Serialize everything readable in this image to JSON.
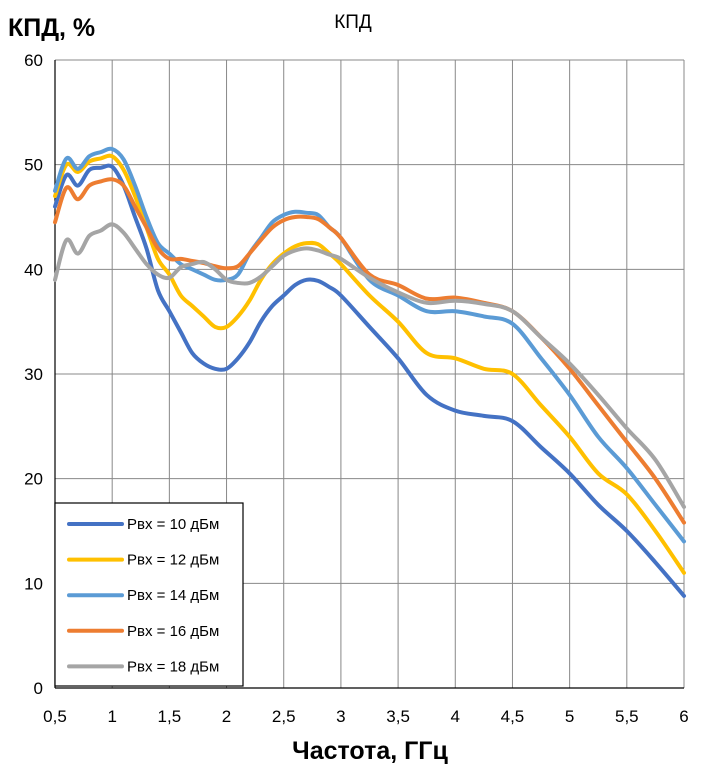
{
  "chart_data": {
    "type": "line",
    "title": "КПД",
    "ylabel": "КПД, %",
    "xlabel": "Частота, ГГц",
    "xlim": [
      0.5,
      6
    ],
    "ylim": [
      0,
      60
    ],
    "x_ticks": [
      0.5,
      1,
      1.5,
      2,
      2.5,
      3,
      3.5,
      4,
      4.5,
      5,
      5.5,
      6
    ],
    "x_tick_labels": [
      "0,5",
      "1",
      "1,5",
      "2",
      "2,5",
      "3",
      "3,5",
      "4",
      "4,5",
      "5",
      "5,5",
      "6"
    ],
    "y_ticks": [
      0,
      10,
      20,
      30,
      40,
      50,
      60
    ],
    "y_tick_labels": [
      "0",
      "10",
      "20",
      "30",
      "40",
      "50",
      "60"
    ],
    "grid": true,
    "legend_position": "bottom-left",
    "series": [
      {
        "name": "Pвх = 10 дБм",
        "color": "#4472C4",
        "x": [
          0.5,
          0.6,
          0.7,
          0.8,
          0.9,
          1.0,
          1.1,
          1.2,
          1.3,
          1.4,
          1.5,
          1.6,
          1.7,
          1.8,
          1.9,
          2.0,
          2.1,
          2.2,
          2.3,
          2.4,
          2.5,
          2.6,
          2.7,
          2.8,
          2.9,
          3.0,
          3.25,
          3.5,
          3.75,
          4.0,
          4.25,
          4.5,
          4.75,
          5.0,
          5.25,
          5.5,
          5.75,
          6.0
        ],
        "y": [
          46,
          49,
          48,
          49.5,
          49.7,
          49.8,
          48,
          45,
          42,
          38,
          36,
          34,
          32,
          31,
          30.5,
          30.5,
          31.5,
          33,
          35,
          36.5,
          37.5,
          38.5,
          39,
          38.9,
          38.3,
          37.5,
          34.5,
          31.5,
          28,
          26.5,
          26,
          25.5,
          23,
          20.5,
          17.5,
          15,
          12,
          8.8
        ]
      },
      {
        "name": "Pвх = 12 дБм",
        "color": "#FFC000",
        "x": [
          0.5,
          0.6,
          0.7,
          0.8,
          0.9,
          1.0,
          1.1,
          1.2,
          1.3,
          1.4,
          1.5,
          1.6,
          1.7,
          1.8,
          1.9,
          2.0,
          2.1,
          2.2,
          2.3,
          2.4,
          2.5,
          2.6,
          2.7,
          2.8,
          2.9,
          3.0,
          3.25,
          3.5,
          3.75,
          4.0,
          4.25,
          4.5,
          4.75,
          5.0,
          5.25,
          5.5,
          5.75,
          6.0
        ],
        "y": [
          47,
          50,
          49.3,
          50.3,
          50.6,
          50.8,
          49.5,
          47,
          44,
          41,
          39.5,
          37.5,
          36.5,
          35.5,
          34.5,
          34.5,
          35.5,
          37,
          39,
          40.5,
          41.5,
          42.2,
          42.5,
          42.4,
          41.5,
          40.5,
          37.5,
          35,
          32,
          31.5,
          30.5,
          30,
          27,
          24,
          20.5,
          18.5,
          15,
          11
        ]
      },
      {
        "name": "Pвх = 14 дБм",
        "color": "#5B9BD5",
        "x": [
          0.5,
          0.6,
          0.7,
          0.8,
          0.9,
          1.0,
          1.1,
          1.2,
          1.3,
          1.4,
          1.5,
          1.6,
          1.7,
          1.8,
          1.9,
          2.0,
          2.1,
          2.2,
          2.3,
          2.4,
          2.5,
          2.6,
          2.7,
          2.8,
          2.9,
          3.0,
          3.25,
          3.5,
          3.75,
          4.0,
          4.25,
          4.5,
          4.75,
          5.0,
          5.25,
          5.5,
          5.75,
          6.0
        ],
        "y": [
          47.5,
          50.6,
          49.6,
          50.8,
          51.2,
          51.5,
          50.5,
          48,
          45,
          42.5,
          41.5,
          40.5,
          40,
          39.5,
          39,
          39,
          39.5,
          41.5,
          43,
          44.5,
          45.2,
          45.5,
          45.4,
          45.2,
          44,
          43,
          39,
          37.5,
          36,
          36,
          35.5,
          34.8,
          31.5,
          28,
          24,
          21,
          17.5,
          14
        ]
      },
      {
        "name": "Pвх = 16 дБм",
        "color": "#ED7D31",
        "x": [
          0.5,
          0.6,
          0.7,
          0.8,
          0.9,
          1.0,
          1.1,
          1.2,
          1.3,
          1.4,
          1.5,
          1.6,
          1.7,
          1.8,
          1.9,
          2.0,
          2.1,
          2.2,
          2.3,
          2.4,
          2.5,
          2.6,
          2.7,
          2.8,
          2.9,
          3.0,
          3.25,
          3.5,
          3.75,
          4.0,
          4.25,
          4.5,
          4.75,
          5.0,
          5.25,
          5.5,
          5.75,
          6.0
        ],
        "y": [
          44.5,
          47.8,
          46.7,
          48,
          48.4,
          48.6,
          48,
          46,
          44,
          42,
          41,
          41,
          40.8,
          40.6,
          40.3,
          40.1,
          40.3,
          41.5,
          42.8,
          44,
          44.7,
          45,
          45,
          44.8,
          44,
          43,
          39.5,
          38.5,
          37.2,
          37.3,
          36.8,
          36,
          33.5,
          30.5,
          27,
          23.5,
          20,
          15.8
        ]
      },
      {
        "name": "Pвх = 18 дБм",
        "color": "#A5A5A5",
        "x": [
          0.5,
          0.6,
          0.7,
          0.8,
          0.9,
          1.0,
          1.1,
          1.2,
          1.3,
          1.4,
          1.5,
          1.6,
          1.7,
          1.8,
          1.9,
          2.0,
          2.1,
          2.2,
          2.3,
          2.4,
          2.5,
          2.6,
          2.7,
          2.8,
          2.9,
          3.0,
          3.25,
          3.5,
          3.75,
          4.0,
          4.25,
          4.5,
          4.75,
          5.0,
          5.25,
          5.5,
          5.75,
          6.0
        ],
        "y": [
          39,
          42.8,
          41.5,
          43.2,
          43.7,
          44.3,
          43.5,
          42,
          40.5,
          39.5,
          39.2,
          40.2,
          40.5,
          40.7,
          40,
          39,
          38.7,
          38.7,
          39.3,
          40.3,
          41.3,
          41.8,
          42,
          41.8,
          41.4,
          41,
          39.2,
          37.8,
          36.8,
          37,
          36.7,
          36,
          33.5,
          31,
          28,
          24.8,
          21.8,
          17.3
        ]
      }
    ]
  }
}
